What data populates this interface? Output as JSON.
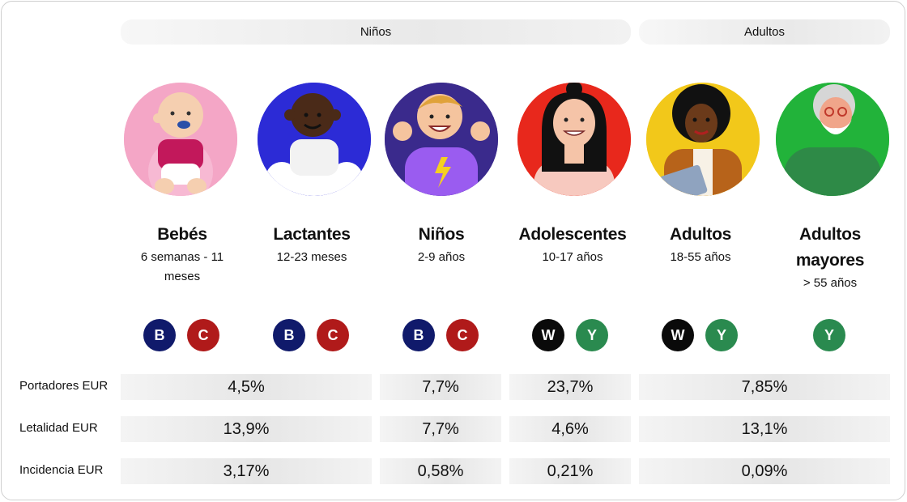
{
  "groups": [
    {
      "label": "Niños"
    },
    {
      "label": "Adultos"
    }
  ],
  "age_groups": [
    {
      "title": "Bebés",
      "range_lines": [
        "6 semanas - 11",
        "meses"
      ],
      "icon": "baby-avatar-icon",
      "bg": "#f4a6c6"
    },
    {
      "title": "Lactantes",
      "range_lines": [
        "12-23 meses"
      ],
      "icon": "toddler-avatar-icon",
      "bg": "#2c2bd6"
    },
    {
      "title": "Niños",
      "range_lines": [
        "2-9 años"
      ],
      "icon": "child-avatar-icon",
      "bg": "#3a2a8c"
    },
    {
      "title": "Adolescentes",
      "range_lines": [
        "10-17 años"
      ],
      "icon": "teen-avatar-icon",
      "bg": "#e8281c"
    },
    {
      "title": "Adultos",
      "range_lines": [
        "18-55 años"
      ],
      "icon": "adult-avatar-icon",
      "bg": "#f2c81a"
    },
    {
      "title_lines": [
        "Adultos",
        "mayores"
      ],
      "range_lines": [
        "> 55 años"
      ],
      "icon": "senior-avatar-icon",
      "bg": "#22b33a"
    }
  ],
  "serogroups": [
    [
      "B",
      "C"
    ],
    [
      "B",
      "C"
    ],
    [
      "B",
      "C"
    ],
    [
      "W",
      "Y"
    ],
    [
      "W",
      "Y"
    ],
    [
      "Y"
    ]
  ],
  "serogroup_colors": {
    "B": "#101a6b",
    "C": "#b01a1a",
    "W": "#0a0a0a",
    "Y": "#2a8a4f"
  },
  "rows": [
    {
      "label": "Portadores EUR",
      "values": [
        "4,5%",
        "7,7%",
        "23,7%",
        "7,85%"
      ]
    },
    {
      "label": "Letalidad EUR",
      "values": [
        "13,9%",
        "7,7%",
        "4,6%",
        "13,1%"
      ]
    },
    {
      "label": "Incidencia EUR",
      "values": [
        "3,17%",
        "0,58%",
        "0,21%",
        "0,09%"
      ]
    }
  ]
}
